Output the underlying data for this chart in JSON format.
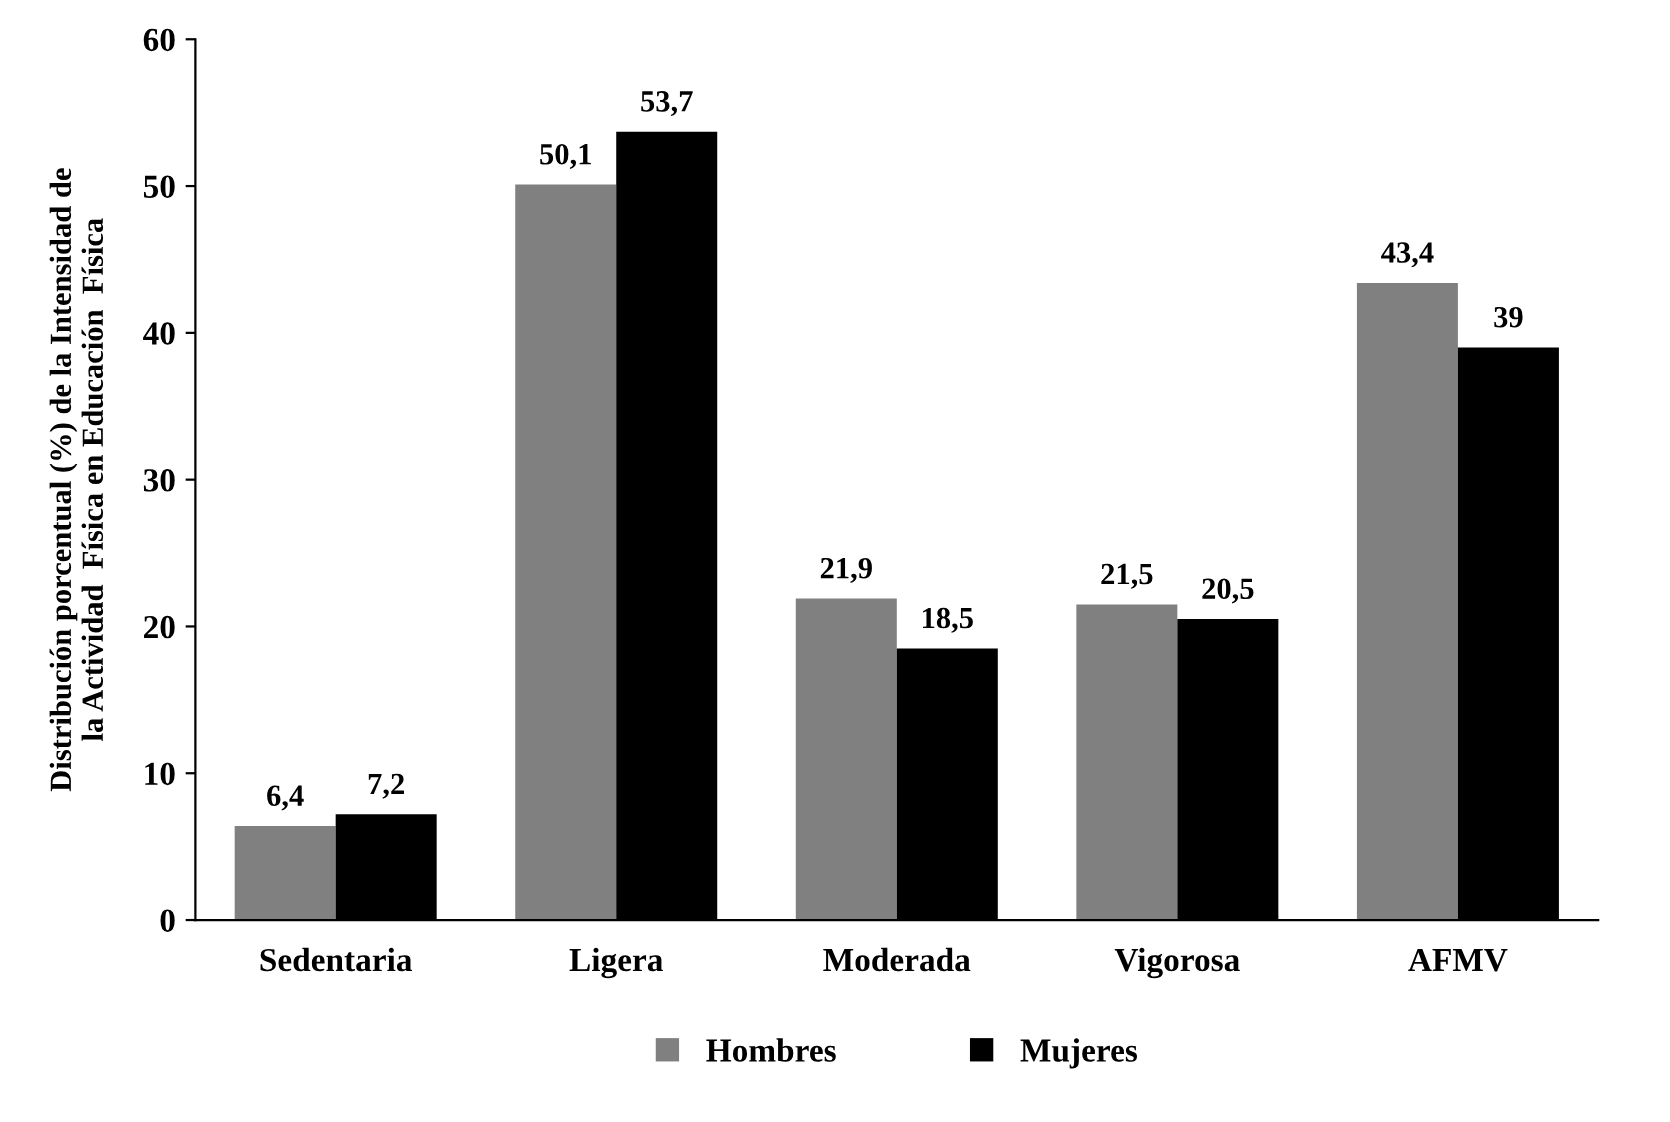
{
  "chart_data": {
    "type": "bar",
    "ylabel": "Distribución porcentual (%) de la Intensidad de\nla Actividad  Física en Educación  Física",
    "categories": [
      "Sedentaria",
      "Ligera",
      "Moderada",
      "Vigorosa",
      "AFMV"
    ],
    "series": [
      {
        "name": "Hombres",
        "color": "#808080",
        "values": [
          6.4,
          50.1,
          21.9,
          21.5,
          43.4
        ],
        "value_labels": [
          "6,4",
          "50,1",
          "21,9",
          "21,5",
          "43,4"
        ]
      },
      {
        "name": "Mujeres",
        "color": "#000000",
        "values": [
          7.2,
          53.7,
          18.5,
          20.5,
          39
        ],
        "value_labels": [
          "7,2",
          "53,7",
          "18,5",
          "20,5",
          "39"
        ]
      }
    ],
    "ylim": [
      0,
      60
    ],
    "yticks": [
      0,
      10,
      20,
      30,
      40,
      50,
      60
    ],
    "grid": false,
    "legend": "bottom"
  }
}
